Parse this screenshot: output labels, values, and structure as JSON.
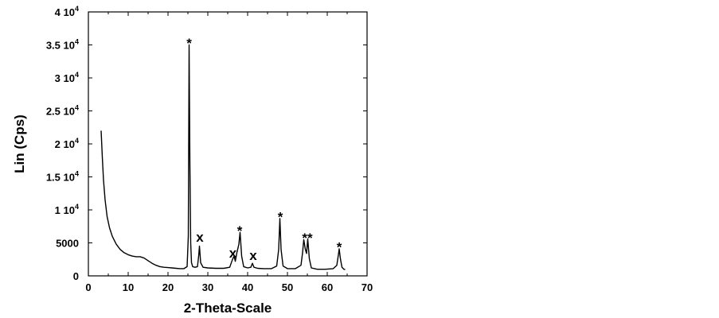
{
  "chart_data": {
    "type": "line",
    "title": "",
    "xlabel": "2-Theta-Scale",
    "ylabel": "Lin (Cps)",
    "xlim": [
      0,
      70
    ],
    "ylim": [
      0,
      40000
    ],
    "grid": false,
    "x_ticks": [
      {
        "value": 0,
        "label": "0"
      },
      {
        "value": 10,
        "label": "10"
      },
      {
        "value": 20,
        "label": "20"
      },
      {
        "value": 30,
        "label": "30"
      },
      {
        "value": 40,
        "label": "40"
      },
      {
        "value": 50,
        "label": "50"
      },
      {
        "value": 60,
        "label": "60"
      },
      {
        "value": 70,
        "label": "70"
      }
    ],
    "y_ticks": [
      {
        "value": 0,
        "label": "0"
      },
      {
        "value": 5000,
        "label": "5000"
      },
      {
        "value": 10000,
        "label": "1 10",
        "exp": "4"
      },
      {
        "value": 15000,
        "label": "1.5 10",
        "exp": "4"
      },
      {
        "value": 20000,
        "label": "2 10",
        "exp": "4"
      },
      {
        "value": 25000,
        "label": "2.5 10",
        "exp": "4"
      },
      {
        "value": 30000,
        "label": "3 10",
        "exp": "4"
      },
      {
        "value": 35000,
        "label": "3.5 10",
        "exp": "4"
      },
      {
        "value": 40000,
        "label": "4 10",
        "exp": "4"
      }
    ],
    "series": [
      {
        "x": [
          3.2,
          3.5,
          3.8,
          4.2,
          4.7,
          5.3,
          6.0,
          7.0,
          8.0,
          9.0,
          10.0,
          11.0,
          12.0,
          13.0,
          14.0,
          15.0,
          16.0,
          17.0,
          18.0,
          19.0,
          20.0,
          21.0,
          22.0,
          23.0,
          24.0,
          24.8,
          25.1,
          25.3,
          25.5,
          25.7,
          25.9,
          26.2,
          26.8,
          27.4,
          27.7,
          27.9,
          28.2,
          28.8,
          30.0,
          32.0,
          34.0,
          35.5,
          36.2,
          36.6,
          36.9,
          37.3,
          37.8,
          38.1,
          38.5,
          39.0,
          40.0,
          40.8,
          41.2,
          41.6,
          42.5,
          44.0,
          46.0,
          47.3,
          47.8,
          48.1,
          48.4,
          48.9,
          50.0,
          52.0,
          53.4,
          53.8,
          54.1,
          54.5,
          54.8,
          55.1,
          55.5,
          56.0,
          57.5,
          59.5,
          61.5,
          62.4,
          62.8,
          63.0,
          63.3,
          63.7,
          64.2,
          64.5
        ],
        "y": [
          22000,
          18000,
          14500,
          11500,
          9000,
          7300,
          6000,
          4800,
          4000,
          3500,
          3200,
          3000,
          2900,
          2900,
          2700,
          2300,
          1900,
          1600,
          1400,
          1300,
          1250,
          1200,
          1150,
          1100,
          1100,
          1400,
          6000,
          35000,
          17000,
          5000,
          2000,
          1400,
          1300,
          1400,
          3000,
          4500,
          2000,
          1300,
          1200,
          1150,
          1150,
          1300,
          2500,
          3000,
          2200,
          3500,
          4800,
          6600,
          3000,
          1400,
          1200,
          1300,
          1900,
          1300,
          1150,
          1100,
          1100,
          1500,
          4000,
          8700,
          4000,
          1500,
          1100,
          1100,
          1600,
          3500,
          5500,
          4000,
          3400,
          5600,
          2600,
          1200,
          1000,
          1000,
          1100,
          1600,
          3200,
          4100,
          2600,
          1300,
          1000,
          950
        ]
      }
    ],
    "annotations": [
      {
        "text": "*",
        "x": 25.3,
        "y": 36000
      },
      {
        "text": "x",
        "x": 28.0,
        "y": 5200
      },
      {
        "text": "x",
        "x": 36.3,
        "y": 2800
      },
      {
        "text": "*",
        "x": 38.0,
        "y": 7600
      },
      {
        "text": "x",
        "x": 41.4,
        "y": 2400
      },
      {
        "text": "*",
        "x": 48.2,
        "y": 9700
      },
      {
        "text": "**",
        "x": 55.0,
        "y": 6500
      },
      {
        "text": "*",
        "x": 63.0,
        "y": 5100
      }
    ]
  }
}
